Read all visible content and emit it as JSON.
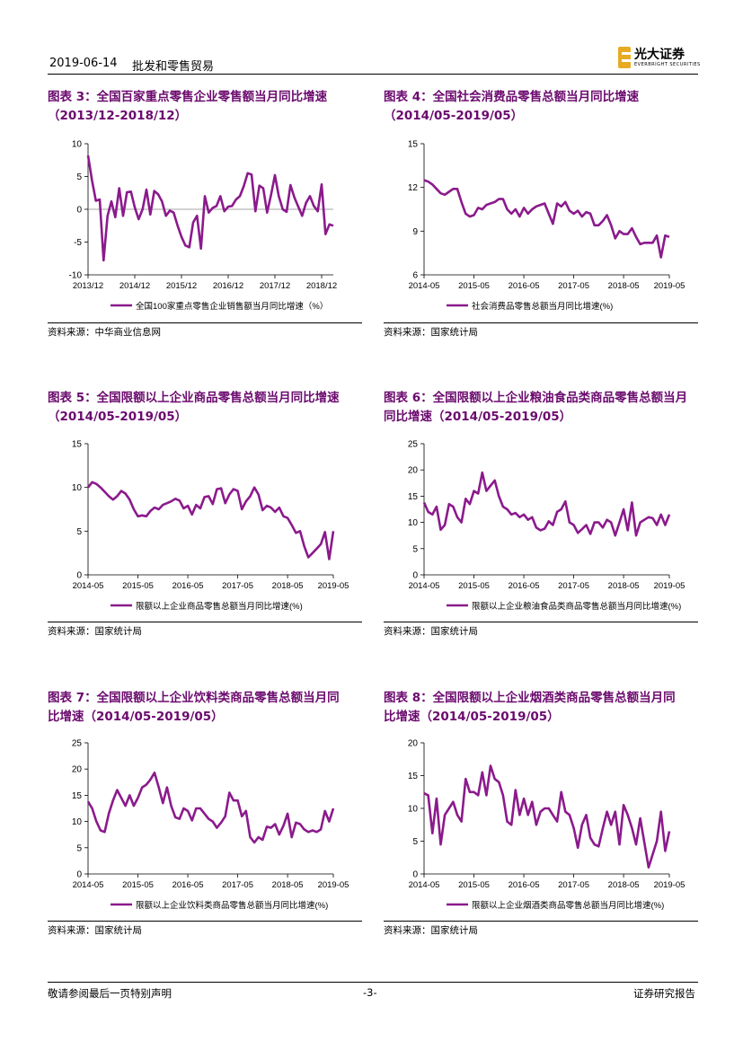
{
  "header": {
    "date": "2019-06-14",
    "title": "批发和零售贸易",
    "logo_cn": "光大证券",
    "logo_en": "EVERBRIGHT SECURITIES"
  },
  "footer": {
    "disclaimer": "敬请参阅最后一页特别声明",
    "page": "-3-",
    "report_type": "证券研究报告"
  },
  "colors": {
    "series": "#8b1a8c",
    "title": "#6b0a6e"
  },
  "panels": [
    {
      "title_lines": [
        "图表 3：全国百家重点零售企业零售额当月同比增速",
        "（2013/12-2018/12）"
      ],
      "source": "资料来源：中华商业信息网",
      "chart_data": {
        "type": "line",
        "x_start": "2013/12",
        "x_end": "2018/12",
        "xticks": [
          "2013/12",
          "2014/12",
          "2015/12",
          "2016/12",
          "2017/12",
          "2018/12"
        ],
        "ylim": [
          -10,
          10
        ],
        "yticks": [
          -10,
          -5,
          0,
          5,
          10
        ],
        "zero_line": true,
        "legend_placement": "bottom",
        "series": [
          {
            "name": "全国100家重点零售企业销售额当月同比增速（%）",
            "values": [
              8.2,
              4.5,
              1.3,
              1.5,
              -7.8,
              -1.0,
              1.2,
              -1.2,
              3.2,
              -1.0,
              2.6,
              2.7,
              0.3,
              -1.5,
              0.0,
              3.0,
              -0.8,
              2.8,
              2.3,
              1.2,
              -1.0,
              -0.2,
              -0.5,
              -2.5,
              -4.2,
              -5.5,
              -5.8,
              -2.0,
              -1.0,
              -6.0,
              2.0,
              -0.5,
              0.2,
              0.5,
              2.0,
              -0.3,
              0.4,
              0.5,
              1.5,
              2.0,
              3.5,
              5.5,
              5.3,
              -0.3,
              3.6,
              3.2,
              -0.5,
              2.2,
              5.2,
              2.0,
              0.0,
              -0.4,
              3.7,
              1.8,
              0.4,
              -1.0,
              1.0,
              2.0,
              0.5,
              -0.3,
              3.8,
              -3.8,
              -2.3,
              -2.5
            ]
          }
        ]
      }
    },
    {
      "title_lines": [
        "图表 4：全国社会消费品零售总额当月同比增速",
        "（2014/05-2019/05）"
      ],
      "source": "资料来源：国家统计局",
      "chart_data": {
        "type": "line",
        "x_start": "2014-05",
        "x_end": "2019-05",
        "xticks": [
          "2014-05",
          "2015-05",
          "2016-05",
          "2017-05",
          "2018-05",
          "2019-05"
        ],
        "ylim": [
          6,
          15
        ],
        "yticks": [
          6,
          9,
          12,
          15
        ],
        "zero_line": false,
        "legend_placement": "bottom",
        "series": [
          {
            "name": "社会消费品零售总额当月同比增速(%)",
            "values": [
              12.5,
              12.4,
              12.2,
              11.9,
              11.6,
              11.5,
              11.7,
              11.9,
              11.9,
              11.0,
              10.2,
              10.0,
              10.1,
              10.6,
              10.5,
              10.8,
              10.9,
              11.0,
              11.2,
              11.2,
              10.5,
              10.2,
              10.5,
              10.0,
              10.6,
              10.2,
              10.5,
              10.7,
              10.8,
              10.9,
              10.2,
              9.5,
              10.9,
              10.7,
              11.0,
              10.4,
              10.2,
              10.4,
              10.0,
              10.3,
              10.2,
              9.4,
              9.4,
              9.7,
              10.1,
              9.4,
              8.5,
              9.0,
              8.8,
              8.8,
              9.2,
              8.6,
              8.1,
              8.2,
              8.2,
              8.2,
              8.7,
              7.2,
              8.7,
              8.6
            ]
          }
        ]
      }
    },
    {
      "title_lines": [
        "图表 5：全国限额以上企业商品零售总额当月同比增速",
        "（2014/05-2019/05）"
      ],
      "source": "资料来源：国家统计局",
      "chart_data": {
        "type": "line",
        "x_start": "2014-05",
        "x_end": "2019-05",
        "xticks": [
          "2014-05",
          "2015-05",
          "2016-05",
          "2017-05",
          "2018-05",
          "2019-05"
        ],
        "ylim": [
          0,
          15
        ],
        "yticks": [
          0,
          5,
          10,
          15
        ],
        "zero_line": false,
        "legend_placement": "bottom",
        "series": [
          {
            "name": "限额以上企业商品零售总额当月同比增速(%)",
            "values": [
              10.0,
              10.6,
              10.4,
              10.0,
              9.5,
              9.0,
              8.6,
              9.0,
              9.6,
              9.3,
              8.6,
              7.5,
              6.7,
              6.8,
              6.7,
              7.3,
              7.7,
              7.5,
              8.0,
              8.2,
              8.4,
              8.7,
              8.5,
              7.6,
              7.9,
              6.9,
              8.0,
              7.6,
              8.9,
              9.0,
              8.1,
              9.8,
              9.9,
              8.2,
              9.2,
              9.8,
              9.6,
              7.5,
              8.4,
              9.0,
              10.0,
              9.2,
              7.4,
              7.9,
              7.7,
              7.2,
              7.7,
              6.7,
              6.5,
              5.7,
              4.8,
              5.0,
              3.3,
              2.0,
              2.5,
              3.0,
              3.5,
              4.9,
              1.8,
              5.0
            ]
          }
        ]
      }
    },
    {
      "title_lines": [
        "图表 6：全国限额以上企业粮油食品类商品零售总额当月",
        "同比增速（2014/05-2019/05）"
      ],
      "source": "资料来源：国家统计局",
      "chart_data": {
        "type": "line",
        "x_start": "2014-05",
        "x_end": "2019-05",
        "xticks": [
          "2014-05",
          "2015-05",
          "2016-05",
          "2017-05",
          "2018-05",
          "2019-05"
        ],
        "ylim": [
          0,
          25
        ],
        "yticks": [
          0,
          5,
          10,
          15,
          20,
          25
        ],
        "zero_line": false,
        "legend_placement": "bottom",
        "series": [
          {
            "name": "限额以上企业粮油食品类商品零售总额当月同比增速(%)",
            "values": [
              13.8,
              12.0,
              11.5,
              13.0,
              8.6,
              9.5,
              13.5,
              13.0,
              11.0,
              10.0,
              14.5,
              13.5,
              16.0,
              15.5,
              19.5,
              16.0,
              17.0,
              18.0,
              15.0,
              13.0,
              12.5,
              11.5,
              11.8,
              11.0,
              11.5,
              10.5,
              11.0,
              9.0,
              8.5,
              8.8,
              10.2,
              9.5,
              12.0,
              12.5,
              14.0,
              10.0,
              9.5,
              8.0,
              8.7,
              9.5,
              7.8,
              10.0,
              10.0,
              9.0,
              10.5,
              10.0,
              7.5,
              10.0,
              12.5,
              8.5,
              13.8,
              7.5,
              10.0,
              10.5,
              11.0,
              10.8,
              9.5,
              11.5,
              9.5,
              11.5
            ]
          }
        ]
      }
    },
    {
      "title_lines": [
        "图表 7：全国限额以上企业饮料类商品零售总额当月同",
        "比增速（2014/05-2019/05）"
      ],
      "source": "资料来源：国家统计局",
      "chart_data": {
        "type": "line",
        "x_start": "2014-05",
        "x_end": "2019-05",
        "xticks": [
          "2014-05",
          "2015-05",
          "2016-05",
          "2017-05",
          "2018-05",
          "2019-05"
        ],
        "ylim": [
          0,
          25
        ],
        "yticks": [
          0,
          5,
          10,
          15,
          20,
          25
        ],
        "zero_line": false,
        "legend_placement": "bottom",
        "series": [
          {
            "name": "限额以上企业饮料类商品零售总额当月同比增速(%)",
            "values": [
              13.8,
              12.5,
              10.0,
              8.3,
              8.0,
              11.5,
              14.0,
              16.0,
              14.5,
              13.0,
              15.0,
              13.0,
              14.5,
              16.5,
              17.0,
              18.0,
              19.3,
              16.5,
              13.5,
              16.5,
              13.0,
              10.8,
              10.5,
              12.5,
              12.0,
              10.2,
              12.5,
              12.5,
              11.5,
              10.5,
              10.0,
              8.8,
              9.8,
              11.0,
              15.5,
              14.0,
              14.0,
              11.0,
              12.0,
              7.0,
              6.0,
              7.0,
              6.5,
              9.0,
              8.8,
              9.5,
              7.5,
              9.2,
              11.5,
              7.0,
              9.8,
              9.5,
              8.5,
              8.0,
              8.3,
              8.0,
              8.5,
              12.0,
              10.0,
              12.5
            ]
          }
        ]
      }
    },
    {
      "title_lines": [
        "图表 8：全国限额以上企业烟酒类商品零售总额当月同",
        "比增速（2014/05-2019/05）"
      ],
      "source": "资料来源：国家统计局",
      "chart_data": {
        "type": "line",
        "x_start": "2014-05",
        "x_end": "2019-05",
        "xticks": [
          "2014-05",
          "2015-05",
          "2016-05",
          "2017-05",
          "2018-05",
          "2019-05"
        ],
        "ylim": [
          0,
          20
        ],
        "yticks": [
          0,
          5,
          10,
          15,
          20
        ],
        "zero_line": false,
        "legend_placement": "bottom",
        "series": [
          {
            "name": "限额以上企业烟酒类商品零售总额当月同比增速(%)",
            "values": [
              12.3,
              12.0,
              6.2,
              11.5,
              4.5,
              9.0,
              10.0,
              11.0,
              9.0,
              8.0,
              14.5,
              12.5,
              12.5,
              12.0,
              15.5,
              12.0,
              16.5,
              14.5,
              14.0,
              12.0,
              8.0,
              7.5,
              12.8,
              9.0,
              11.5,
              9.0,
              11.0,
              7.5,
              9.5,
              10.0,
              10.0,
              9.0,
              8.0,
              12.5,
              9.5,
              9.0,
              7.0,
              4.0,
              7.5,
              9.0,
              5.5,
              4.5,
              4.2,
              7.0,
              9.5,
              7.5,
              9.5,
              4.5,
              10.5,
              9.0,
              7.0,
              4.5,
              8.5,
              4.8,
              1.0,
              3.0,
              5.0,
              9.5,
              3.5,
              6.5
            ]
          }
        ]
      }
    }
  ]
}
